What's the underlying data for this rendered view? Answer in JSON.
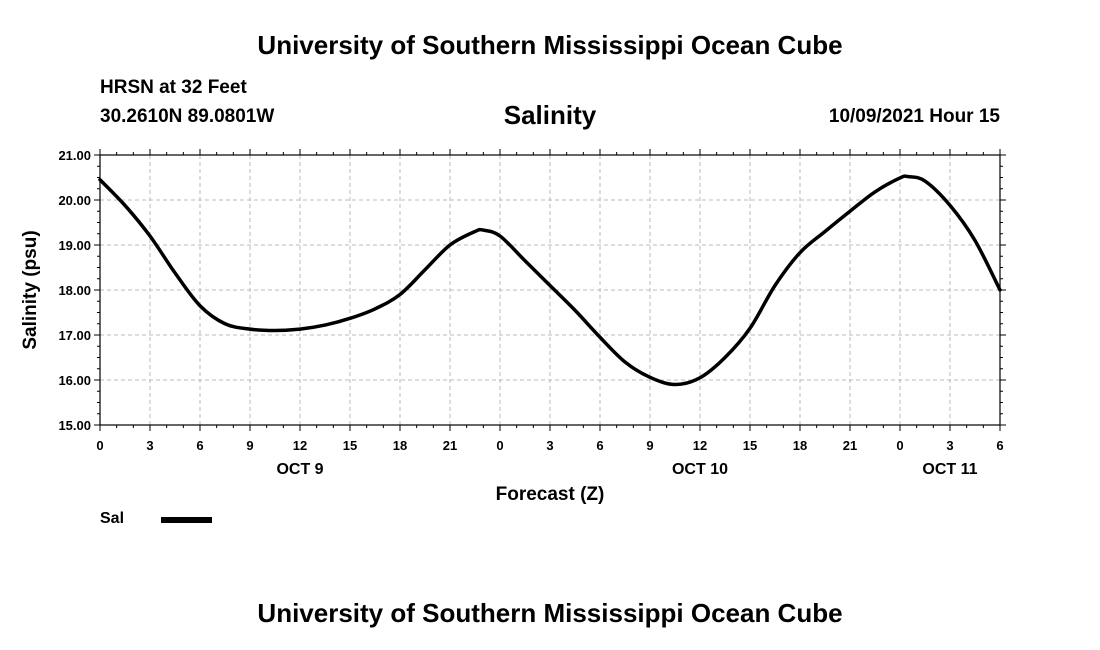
{
  "header": {
    "title": "University of Southern Mississippi Ocean Cube",
    "station": "HRSN at 32 Feet",
    "coordinates": "30.2610N  89.0801W",
    "datetime": "10/09/2021 Hour 15"
  },
  "footer": {
    "title": "University of Southern Mississippi Ocean Cube"
  },
  "legend": {
    "label": "Sal",
    "swatch_color": "#000000"
  },
  "chart_data": {
    "type": "line",
    "title": "Salinity",
    "xlabel": "Forecast (Z)",
    "ylabel": "Salinity (psu)",
    "ylim": [
      15.0,
      21.0
    ],
    "yticks": [
      "15.00",
      "16.00",
      "17.00",
      "18.00",
      "19.00",
      "20.00",
      "21.00"
    ],
    "xlim_hours": [
      0,
      54
    ],
    "xtick_labels": [
      "0",
      "3",
      "6",
      "9",
      "12",
      "15",
      "18",
      "21",
      "0",
      "3",
      "6",
      "9",
      "12",
      "15",
      "18",
      "21",
      "0",
      "3",
      "6"
    ],
    "day_labels": [
      {
        "label": "OCT 9",
        "hour": 12
      },
      {
        "label": "OCT 10",
        "hour": 36
      },
      {
        "label": "OCT 11",
        "hour": 51
      }
    ],
    "grid": true,
    "series": [
      {
        "name": "Sal",
        "color": "#000000",
        "hours": [
          0,
          1.5,
          3,
          4.5,
          6,
          7.5,
          9,
          10.5,
          12,
          13.5,
          15,
          16.5,
          18,
          19.5,
          21,
          22.5,
          23,
          24,
          25.5,
          27,
          28.5,
          30,
          31.5,
          33,
          34.5,
          36,
          37.5,
          39,
          40.5,
          42,
          43.5,
          45,
          46.5,
          48,
          48.5,
          49.5,
          51,
          52.5,
          54
        ],
        "values": [
          20.45,
          19.88,
          19.2,
          18.38,
          17.65,
          17.25,
          17.13,
          17.1,
          17.13,
          17.22,
          17.37,
          17.58,
          17.9,
          18.45,
          19.0,
          19.3,
          19.33,
          19.2,
          18.65,
          18.1,
          17.55,
          16.95,
          16.4,
          16.06,
          15.9,
          16.05,
          16.5,
          17.15,
          18.1,
          18.83,
          19.3,
          19.75,
          20.18,
          20.49,
          20.52,
          20.42,
          19.88,
          19.1,
          18.0
        ]
      }
    ]
  }
}
